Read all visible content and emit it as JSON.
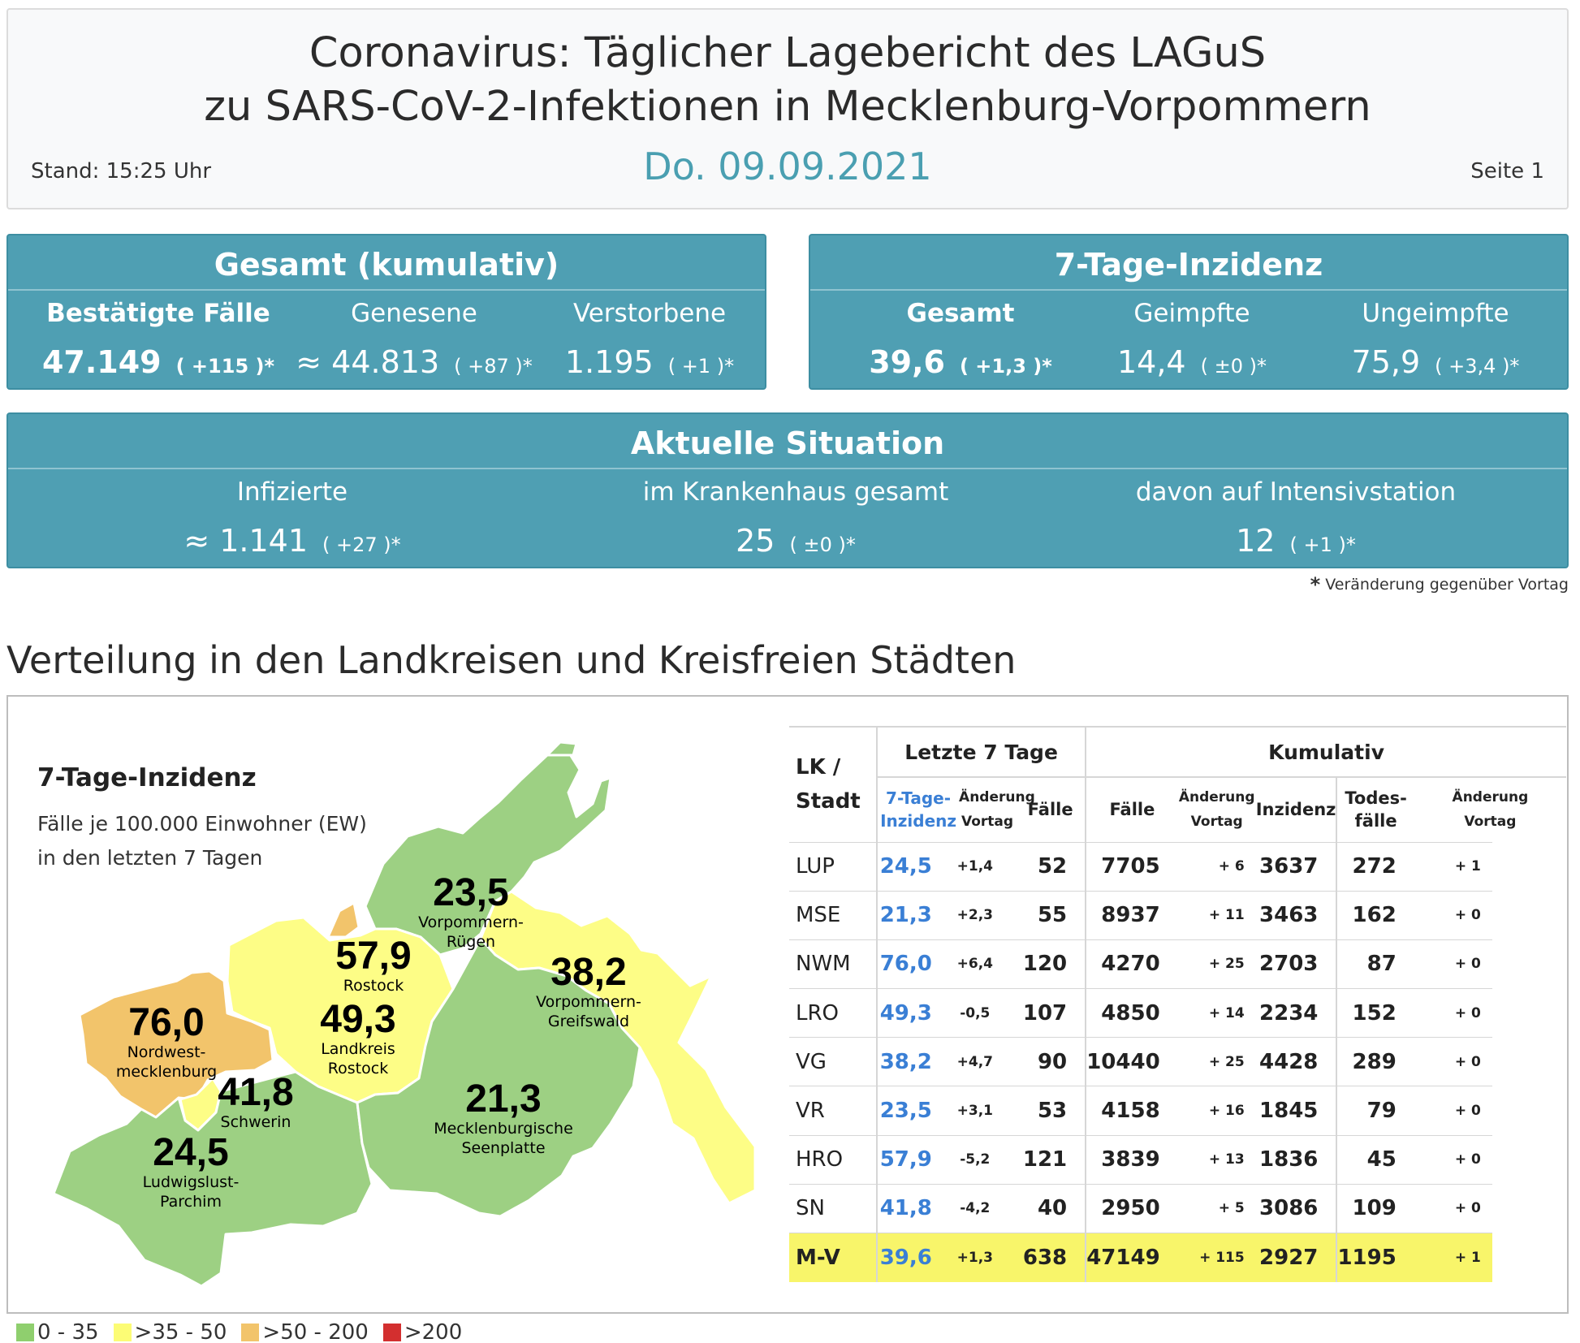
{
  "header": {
    "title_line1": "Coronavirus: Täglicher Lagebericht des LAGuS",
    "title_line2": "zu SARS-CoV-2-Infektionen in Mecklenburg-Vorpommern",
    "stand": "Stand: 15:25 Uhr",
    "date": "Do. 09.09.2021",
    "page": "Seite 1"
  },
  "gesamt": {
    "title": "Gesamt (kumulativ)",
    "columns": [
      {
        "label": "Bestätigte Fälle",
        "value": "47.149",
        "change": "( +115 )*"
      },
      {
        "label": "Genesene",
        "value": "≈ 44.813",
        "change": "( +87 )*"
      },
      {
        "label": "Verstorbene",
        "value": "1.195",
        "change": "( +1 )*"
      }
    ]
  },
  "inzidenz": {
    "title": "7-Tage-Inzidenz",
    "columns": [
      {
        "label": "Gesamt",
        "value": "39,6",
        "change": "( +1,3 )*"
      },
      {
        "label": "Geimpfte",
        "value": "14,4",
        "change": "( ±0 )*"
      },
      {
        "label": "Ungeimpfte",
        "value": "75,9",
        "change": "( +3,4 )*"
      }
    ]
  },
  "aktuell": {
    "title": "Aktuelle Situation",
    "columns": [
      {
        "label": "Infizierte",
        "value": "≈ 1.141",
        "change": "( +27 )*"
      },
      {
        "label": "im Krankenhaus gesamt",
        "value": "25",
        "change": "( ±0 )*"
      },
      {
        "label": "davon auf Intensivstation",
        "value": "12",
        "change": "( +1 )*"
      }
    ]
  },
  "footnote": {
    "star": "*",
    "text": "Veränderung gegenüber Vortag"
  },
  "section_title": "Verteilung in den Landkreisen und Kreisfreien Städten",
  "map": {
    "title": "7-Tage-Inzidenz",
    "subtitle_line1": "Fälle je 100.000 Einwohner (EW)",
    "subtitle_line2": "in den letzten 7 Tagen",
    "regions": [
      {
        "value": "23,5",
        "name1": "Vorpommern-",
        "name2": "Rügen"
      },
      {
        "value": "57,9",
        "name1": "Rostock",
        "name2": ""
      },
      {
        "value": "38,2",
        "name1": "Vorpommern-",
        "name2": "Greifswald"
      },
      {
        "value": "49,3",
        "name1": "Landkreis",
        "name2": "Rostock"
      },
      {
        "value": "76,0",
        "name1": "Nordwest-",
        "name2": "mecklenburg"
      },
      {
        "value": "41,8",
        "name1": "Schwerin",
        "name2": ""
      },
      {
        "value": "21,3",
        "name1": "Mecklenburgische",
        "name2": "Seenplatte"
      },
      {
        "value": "24,5",
        "name1": "Ludwigslust-",
        "name2": "Parchim"
      }
    ],
    "colors": {
      "green": "#9dd083",
      "yellow": "#fdfd86",
      "orange": "#f2c46b",
      "red": "#d32f2f"
    }
  },
  "table": {
    "group_headers": {
      "last7": "Letzte 7 Tage",
      "kumulativ": "Kumulativ"
    },
    "lk_header_line1": "LK /",
    "lk_header_line2": "Stadt",
    "sub_headers": {
      "inz1": "7-Tage-",
      "inz2": "Inzidenz",
      "aend1": "Änderung",
      "aend2": "Vortag",
      "faelle7": "Fälle",
      "faelle": "Fälle",
      "kaend1": "Änderung",
      "kaend2": "Vortag",
      "inzidenz": "Inzidenz",
      "tod1": "Todes-",
      "tod2": "fälle",
      "taend1": "Änderung",
      "taend2": "Vortag"
    },
    "rows": [
      {
        "lk": "LUP",
        "inz": "24,5",
        "chg": "+1,4",
        "f7": "52",
        "cases": "7705",
        "cchg": "+ 6",
        "cinz": "3637",
        "deaths": "272",
        "dchg": "+ 1"
      },
      {
        "lk": "MSE",
        "inz": "21,3",
        "chg": "+2,3",
        "f7": "55",
        "cases": "8937",
        "cchg": "+ 11",
        "cinz": "3463",
        "deaths": "162",
        "dchg": "+ 0"
      },
      {
        "lk": "NWM",
        "inz": "76,0",
        "chg": "+6,4",
        "f7": "120",
        "cases": "4270",
        "cchg": "+ 25",
        "cinz": "2703",
        "deaths": "87",
        "dchg": "+ 0"
      },
      {
        "lk": "LRO",
        "inz": "49,3",
        "chg": "-0,5",
        "f7": "107",
        "cases": "4850",
        "cchg": "+ 14",
        "cinz": "2234",
        "deaths": "152",
        "dchg": "+ 0"
      },
      {
        "lk": "VG",
        "inz": "38,2",
        "chg": "+4,7",
        "f7": "90",
        "cases": "10440",
        "cchg": "+ 25",
        "cinz": "4428",
        "deaths": "289",
        "dchg": "+ 0"
      },
      {
        "lk": "VR",
        "inz": "23,5",
        "chg": "+3,1",
        "f7": "53",
        "cases": "4158",
        "cchg": "+ 16",
        "cinz": "1845",
        "deaths": "79",
        "dchg": "+ 0"
      },
      {
        "lk": "HRO",
        "inz": "57,9",
        "chg": "-5,2",
        "f7": "121",
        "cases": "3839",
        "cchg": "+ 13",
        "cinz": "1836",
        "deaths": "45",
        "dchg": "+ 0"
      },
      {
        "lk": "SN",
        "inz": "41,8",
        "chg": "-4,2",
        "f7": "40",
        "cases": "2950",
        "cchg": "+ 5",
        "cinz": "3086",
        "deaths": "109",
        "dchg": "+ 0"
      }
    ],
    "total": {
      "lk": "M-V",
      "inz": "39,6",
      "chg": "+1,3",
      "f7": "638",
      "cases": "47149",
      "cchg": "+ 115",
      "cinz": "2927",
      "deaths": "1195",
      "dchg": "+ 1"
    }
  },
  "legend": [
    {
      "label": "0 - 35",
      "color": "#8fcf6e"
    },
    {
      "label": ">35 - 50",
      "color": "#fcfc75"
    },
    {
      "label": ">50 - 200",
      "color": "#f2c46b"
    },
    {
      "label": ">200",
      "color": "#d32f2f"
    }
  ]
}
